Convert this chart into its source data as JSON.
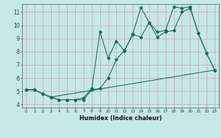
{
  "xlabel": "Humidex (Indice chaleur)",
  "background_color": "#c5e8e8",
  "grid_color": "#d4a0a0",
  "line_color": "#1a6b5a",
  "xlim": [
    -0.5,
    23.5
  ],
  "ylim": [
    3.75,
    11.6
  ],
  "yticks": [
    4,
    5,
    6,
    7,
    8,
    9,
    10,
    11
  ],
  "xticks": [
    0,
    1,
    2,
    3,
    4,
    5,
    6,
    7,
    8,
    9,
    10,
    11,
    12,
    13,
    14,
    15,
    16,
    17,
    18,
    19,
    20,
    21,
    22,
    23
  ],
  "series1_x": [
    0,
    1,
    2,
    3,
    4,
    5,
    6,
    7,
    8,
    9,
    10,
    11,
    12,
    13,
    14,
    15,
    16,
    17,
    18,
    19,
    20,
    21,
    22,
    23
  ],
  "series1_y": [
    5.1,
    5.1,
    4.8,
    4.55,
    4.35,
    4.35,
    4.35,
    4.35,
    5.1,
    5.2,
    6.0,
    7.4,
    8.1,
    9.3,
    9.1,
    10.2,
    9.1,
    9.5,
    9.6,
    11.0,
    11.3,
    9.4,
    7.9,
    6.6
  ],
  "series2_x": [
    0,
    1,
    2,
    3,
    4,
    5,
    6,
    7,
    8,
    9,
    10,
    11,
    12,
    13,
    14,
    15,
    16,
    17,
    18,
    19,
    20,
    21,
    22,
    23
  ],
  "series2_y": [
    5.1,
    5.1,
    4.8,
    4.55,
    4.35,
    4.35,
    4.35,
    4.5,
    5.2,
    9.5,
    7.5,
    8.8,
    8.05,
    9.35,
    11.35,
    10.2,
    9.5,
    9.6,
    11.4,
    11.3,
    11.4,
    9.4,
    7.9,
    6.6
  ],
  "series3_x": [
    0,
    1,
    2,
    3,
    23
  ],
  "series3_y": [
    5.1,
    5.1,
    4.8,
    4.55,
    6.6
  ]
}
